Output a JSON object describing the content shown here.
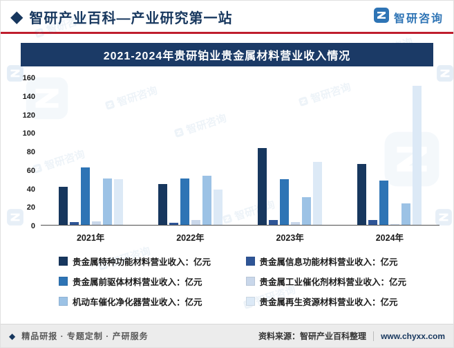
{
  "header": {
    "site_title": "智研产业百科—产业研究第一站",
    "brand_name": "智研咨询"
  },
  "chart_data": {
    "type": "bar",
    "title": "2021-2024年贵研铂业贵金属材料营业收入情况",
    "categories": [
      "2021年",
      "2022年",
      "2023年",
      "2024年"
    ],
    "series": [
      {
        "name": "贵金属特种功能材料营业收入：亿元",
        "color": "#17375e",
        "values": [
          41,
          44,
          83,
          66
        ]
      },
      {
        "name": "贵金属信息功能材料营业收入：亿元",
        "color": "#2e5596",
        "values": [
          3,
          2,
          5,
          5
        ]
      },
      {
        "name": "贵金属前驱体材料营业收入：亿元",
        "color": "#2e74b5",
        "values": [
          62,
          50,
          49,
          48
        ]
      },
      {
        "name": "贵金属工业催化剂材料营业收入：亿元",
        "color": "#c9d7ea",
        "values": [
          4,
          5,
          3,
          1
        ]
      },
      {
        "name": "机动车催化净化器营业收入：亿元",
        "color": "#9cc2e5",
        "values": [
          50,
          53,
          30,
          23
        ]
      },
      {
        "name": "贵金属再生资源材料营业收入：亿元",
        "color": "#dce9f6",
        "values": [
          49,
          38,
          68,
          150
        ]
      }
    ],
    "ylim": [
      0,
      160
    ],
    "yticks": [
      0,
      20,
      40,
      60,
      80,
      100,
      120,
      140,
      160
    ],
    "xlabel": "",
    "ylabel": "",
    "grid": false,
    "legend_position": "bottom"
  },
  "footer": {
    "services": "精品研报 · 专题定制 · 产研服务",
    "source": "资料来源：智研产业百科整理",
    "website": "www.chyxx.com"
  },
  "watermark": {
    "text": "智研咨询"
  }
}
